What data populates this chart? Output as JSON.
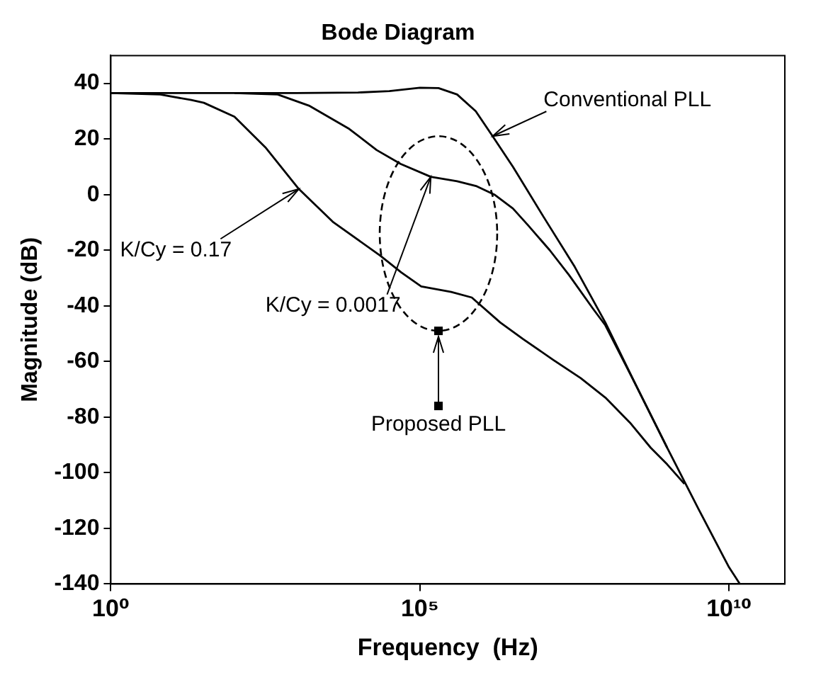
{
  "chart_data": {
    "type": "line",
    "title": "Bode Diagram",
    "xlabel": "Frequency  (Hz)",
    "ylabel": "Magnitude (dB)",
    "log": "x",
    "grid": false,
    "legend": false,
    "marker": "none",
    "line_style": "solid",
    "xlim": [
      1,
      80000000000
    ],
    "xticks": [
      {
        "value": 1,
        "label": "10⁰"
      },
      {
        "value": 100000,
        "label": "10⁵"
      },
      {
        "value": 10000000000,
        "label": "10¹⁰"
      }
    ],
    "ylim": [
      -140,
      50
    ],
    "yticks": [
      -140,
      -120,
      -100,
      -80,
      -60,
      -40,
      -20,
      0,
      20,
      40
    ],
    "annotations": [
      {
        "text": "Conventional PLL",
        "x": 1500000,
        "y": 21
      },
      {
        "text": "K/Cy = 0.17",
        "x": 1100,
        "y": 2
      },
      {
        "text": "K/Cy = 0.0017",
        "x": 150000,
        "y": 6.4
      },
      "Proposed PLL"
    ],
    "series": [
      {
        "color": "#000000",
        "x": [
          1,
          1000,
          10000,
          32000,
          100000,
          200000,
          400000,
          800000,
          1500000,
          3200000,
          10000000,
          32000000,
          100000000,
          320000000,
          1000000000,
          3200000000,
          10000000000,
          15000000000
        ],
        "values": [
          36.5,
          36.5,
          36.7,
          37.2,
          38.4,
          38.3,
          36,
          30,
          21,
          10,
          -8,
          -26,
          -46,
          -69,
          -91,
          -113,
          -134,
          -140
        ]
      },
      {
        "color": "#000000",
        "x": [
          1,
          6.3,
          20,
          32,
          100,
          316,
          1100,
          4000,
          23000,
          50000,
          105000,
          320000,
          690000,
          2000000,
          4700000,
          14500000,
          40000000,
          100000000,
          250000000,
          540000000,
          1000000000,
          1900000000
        ],
        "values": [
          36.5,
          36,
          34,
          33,
          28,
          17,
          2,
          -10,
          -22,
          -28,
          -33,
          -35,
          -37,
          -46,
          -52,
          -59.5,
          -66,
          -73,
          -82,
          -91,
          -97,
          -104
        ]
      },
      {
        "color": "#000000",
        "x": [
          100,
          500,
          1600,
          7200,
          20000,
          49000,
          150000,
          400000,
          830000,
          1600000,
          3200000,
          5600000,
          12600000,
          26000000,
          63000000,
          100000000,
          320000000,
          1000000000
        ],
        "values": [
          36.5,
          36,
          32,
          23.6,
          16,
          11,
          6.4,
          4.8,
          3,
          0,
          -5,
          -11,
          -20,
          -29,
          -41,
          -47,
          -69,
          -91
        ]
      }
    ]
  }
}
